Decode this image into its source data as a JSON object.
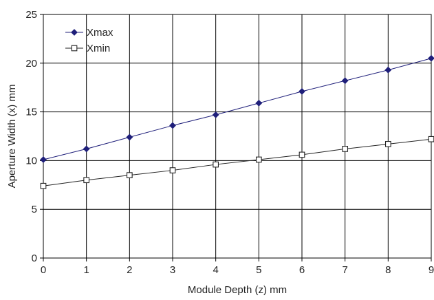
{
  "chart_data": {
    "type": "line",
    "title": "",
    "xlabel": "Module Depth (z) mm",
    "ylabel": "Aperture Width (x) mm",
    "xlim": [
      0,
      9
    ],
    "ylim": [
      0,
      25
    ],
    "x_ticks": [
      0,
      1,
      2,
      3,
      4,
      5,
      6,
      7,
      8,
      9
    ],
    "y_ticks": [
      0,
      5,
      10,
      15,
      20,
      25
    ],
    "grid": true,
    "legend_position": "top-left",
    "x": [
      0,
      1,
      2,
      3,
      4,
      5,
      6,
      7,
      8,
      9
    ],
    "series": [
      {
        "name": "Xmax",
        "marker": "filled-diamond",
        "color": "#1f1f7a",
        "values": [
          10.1,
          11.2,
          12.4,
          13.6,
          14.7,
          15.9,
          17.1,
          18.2,
          19.3,
          20.5
        ]
      },
      {
        "name": "Xmin",
        "marker": "open-square",
        "color": "#222222",
        "values": [
          7.4,
          8.0,
          8.5,
          9.0,
          9.6,
          10.1,
          10.6,
          11.2,
          11.7,
          12.2
        ]
      }
    ]
  }
}
